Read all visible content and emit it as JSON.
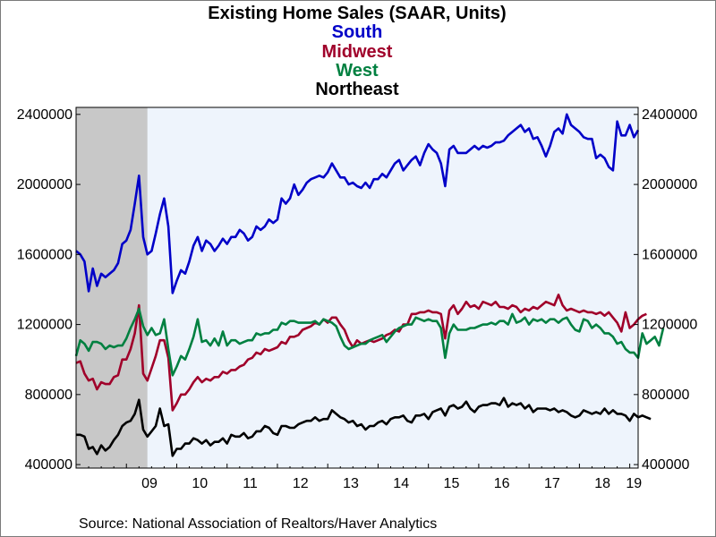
{
  "header": {
    "title": "Existing Home Sales (SAAR, Units)",
    "legend_lines": [
      {
        "text": "South",
        "color": "#0000c8"
      },
      {
        "text": "Midwest",
        "color": "#a0002a"
      },
      {
        "text": "West",
        "color": "#008040"
      },
      {
        "text": "Northeast",
        "color": "#000000"
      }
    ]
  },
  "footer": {
    "source": "Source:  National Association of Realtors/Haver Analytics"
  },
  "chart_data": {
    "type": "line",
    "title": "Existing Home Sales (SAAR, Units)",
    "x_start": "2008-01",
    "frequency": "monthly",
    "xlim": [
      "2008-01",
      "2019-03"
    ],
    "ylim": [
      380000,
      2440000
    ],
    "y_ticks": [
      400000,
      800000,
      1200000,
      1600000,
      2000000,
      2400000
    ],
    "y_tick_labels": [
      "400000",
      "800000",
      "1200000",
      "1600000",
      "2000000",
      "2400000"
    ],
    "x_tick_labels": [
      "09",
      "10",
      "11",
      "12",
      "13",
      "14",
      "15",
      "16",
      "17",
      "18",
      "19"
    ],
    "recession_shading": {
      "start": "2008-01",
      "end": "2009-06",
      "color": "#c8c8c8"
    },
    "plot_background": "#eef4fc",
    "legend_position": "top-center",
    "series": [
      {
        "name": "South",
        "color": "#0000c8",
        "values": [
          1620000,
          1600000,
          1560000,
          1390000,
          1520000,
          1420000,
          1490000,
          1470000,
          1490000,
          1510000,
          1550000,
          1660000,
          1680000,
          1740000,
          1890000,
          2050000,
          1700000,
          1600000,
          1620000,
          1720000,
          1830000,
          1920000,
          1760000,
          1380000,
          1450000,
          1510000,
          1490000,
          1560000,
          1650000,
          1700000,
          1620000,
          1680000,
          1660000,
          1620000,
          1650000,
          1690000,
          1660000,
          1700000,
          1700000,
          1740000,
          1720000,
          1680000,
          1700000,
          1760000,
          1740000,
          1760000,
          1800000,
          1780000,
          1800000,
          1920000,
          1890000,
          1920000,
          2000000,
          1940000,
          1970000,
          2010000,
          2030000,
          2040000,
          2050000,
          2040000,
          2070000,
          2120000,
          2080000,
          2040000,
          2040000,
          2000000,
          2010000,
          1990000,
          1980000,
          2010000,
          1980000,
          2030000,
          2030000,
          2060000,
          2040000,
          2080000,
          2120000,
          2140000,
          2080000,
          2110000,
          2140000,
          2160000,
          2110000,
          2180000,
          2230000,
          2200000,
          2180000,
          2120000,
          1990000,
          2200000,
          2220000,
          2180000,
          2180000,
          2180000,
          2200000,
          2220000,
          2200000,
          2220000,
          2210000,
          2220000,
          2240000,
          2240000,
          2250000,
          2280000,
          2300000,
          2320000,
          2340000,
          2300000,
          2320000,
          2260000,
          2270000,
          2220000,
          2160000,
          2220000,
          2300000,
          2320000,
          2290000,
          2400000,
          2340000,
          2320000,
          2300000,
          2270000,
          2260000,
          2260000,
          2150000,
          2170000,
          2150000,
          2100000,
          2080000,
          2360000,
          2280000,
          2280000,
          2340000,
          2270000,
          2310000
        ]
      },
      {
        "name": "Midwest",
        "color": "#a0002a",
        "values": [
          980000,
          990000,
          920000,
          880000,
          890000,
          830000,
          870000,
          860000,
          860000,
          900000,
          910000,
          1000000,
          1000000,
          1060000,
          1150000,
          1310000,
          920000,
          880000,
          950000,
          1020000,
          1110000,
          1110000,
          1010000,
          710000,
          750000,
          800000,
          800000,
          830000,
          870000,
          900000,
          870000,
          890000,
          880000,
          900000,
          900000,
          930000,
          920000,
          940000,
          940000,
          960000,
          970000,
          1000000,
          1010000,
          1040000,
          1030000,
          1060000,
          1050000,
          1060000,
          1070000,
          1100000,
          1090000,
          1130000,
          1130000,
          1140000,
          1170000,
          1180000,
          1190000,
          1210000,
          1200000,
          1230000,
          1210000,
          1240000,
          1240000,
          1200000,
          1170000,
          1110000,
          1070000,
          1110000,
          1090000,
          1100000,
          1110000,
          1100000,
          1110000,
          1120000,
          1140000,
          1150000,
          1170000,
          1160000,
          1200000,
          1200000,
          1260000,
          1260000,
          1270000,
          1270000,
          1280000,
          1270000,
          1270000,
          1260000,
          1120000,
          1280000,
          1310000,
          1260000,
          1290000,
          1330000,
          1300000,
          1310000,
          1290000,
          1330000,
          1320000,
          1310000,
          1330000,
          1300000,
          1300000,
          1290000,
          1310000,
          1300000,
          1270000,
          1290000,
          1280000,
          1300000,
          1290000,
          1310000,
          1330000,
          1320000,
          1310000,
          1370000,
          1310000,
          1280000,
          1290000,
          1280000,
          1270000,
          1280000,
          1270000,
          1270000,
          1260000,
          1270000,
          1250000,
          1270000,
          1240000,
          1210000,
          1160000,
          1270000,
          1180000,
          1200000,
          1230000,
          1250000,
          1260000
        ]
      },
      {
        "name": "West",
        "color": "#008040",
        "values": [
          1020000,
          1110000,
          1090000,
          1050000,
          1100000,
          1100000,
          1090000,
          1060000,
          1080000,
          1070000,
          1080000,
          1080000,
          1120000,
          1180000,
          1230000,
          1290000,
          1190000,
          1140000,
          1180000,
          1140000,
          1150000,
          1230000,
          1060000,
          910000,
          960000,
          1020000,
          1000000,
          1060000,
          1130000,
          1230000,
          1100000,
          1110000,
          1080000,
          1120000,
          1080000,
          1160000,
          1080000,
          1110000,
          1110000,
          1090000,
          1100000,
          1110000,
          1110000,
          1150000,
          1140000,
          1150000,
          1150000,
          1170000,
          1170000,
          1210000,
          1200000,
          1220000,
          1220000,
          1210000,
          1210000,
          1210000,
          1210000,
          1220000,
          1200000,
          1230000,
          1220000,
          1210000,
          1190000,
          1130000,
          1080000,
          1060000,
          1070000,
          1080000,
          1090000,
          1090000,
          1110000,
          1120000,
          1130000,
          1140000,
          1100000,
          1130000,
          1160000,
          1180000,
          1190000,
          1200000,
          1200000,
          1240000,
          1230000,
          1220000,
          1230000,
          1220000,
          1220000,
          1180000,
          1010000,
          1150000,
          1200000,
          1170000,
          1170000,
          1170000,
          1180000,
          1180000,
          1190000,
          1200000,
          1200000,
          1210000,
          1200000,
          1220000,
          1220000,
          1200000,
          1260000,
          1210000,
          1220000,
          1240000,
          1200000,
          1230000,
          1220000,
          1230000,
          1210000,
          1230000,
          1230000,
          1210000,
          1230000,
          1240000,
          1200000,
          1170000,
          1160000,
          1230000,
          1220000,
          1180000,
          1200000,
          1180000,
          1150000,
          1150000,
          1130000,
          1090000,
          1100000,
          1060000,
          1040000,
          1040000,
          1010000,
          1150000,
          1090000,
          1110000,
          1130000,
          1080000,
          1180000
        ]
      },
      {
        "name": "Northeast",
        "color": "#000000",
        "values": [
          570000,
          570000,
          560000,
          490000,
          500000,
          460000,
          510000,
          480000,
          500000,
          540000,
          570000,
          620000,
          640000,
          650000,
          690000,
          770000,
          600000,
          560000,
          590000,
          620000,
          720000,
          620000,
          630000,
          450000,
          490000,
          490000,
          520000,
          520000,
          550000,
          540000,
          520000,
          540000,
          510000,
          530000,
          530000,
          550000,
          520000,
          570000,
          560000,
          560000,
          580000,
          550000,
          560000,
          590000,
          590000,
          620000,
          610000,
          580000,
          570000,
          620000,
          620000,
          610000,
          610000,
          630000,
          640000,
          650000,
          650000,
          670000,
          650000,
          660000,
          660000,
          710000,
          690000,
          670000,
          660000,
          640000,
          650000,
          620000,
          630000,
          600000,
          620000,
          620000,
          640000,
          650000,
          630000,
          660000,
          670000,
          670000,
          680000,
          650000,
          640000,
          680000,
          680000,
          690000,
          660000,
          700000,
          710000,
          720000,
          680000,
          730000,
          740000,
          720000,
          730000,
          760000,
          720000,
          700000,
          730000,
          740000,
          740000,
          750000,
          750000,
          740000,
          780000,
          730000,
          750000,
          740000,
          750000,
          720000,
          740000,
          700000,
          720000,
          720000,
          720000,
          710000,
          720000,
          700000,
          710000,
          700000,
          680000,
          670000,
          680000,
          710000,
          700000,
          690000,
          700000,
          690000,
          720000,
          690000,
          710000,
          690000,
          690000,
          680000,
          650000,
          690000,
          670000,
          680000,
          670000,
          660000
        ]
      }
    ]
  }
}
